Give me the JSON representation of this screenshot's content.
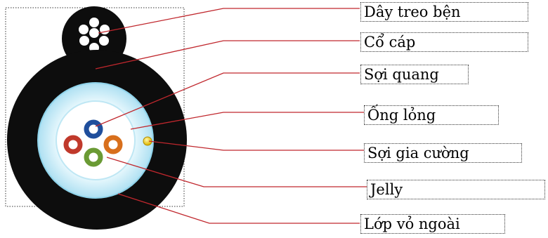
{
  "labels": {
    "day_treo_ben": "Dây treo bện",
    "co_cap": "Cổ cáp",
    "soi_quang": "Sợi quang",
    "ong_long": "Ống lỏng",
    "soi_gia_cuong": "Sợi gia cường",
    "jelly": "Jelly",
    "lop_vo_ngoai": "Lớp vỏ ngoài"
  },
  "colors": {
    "leader_line": "#c0272d",
    "cable_jacket": "#0d0d0d",
    "loose_tube": "#d6f1fa",
    "jelly_fill": "#ffffff",
    "fiber_blue": "#1f4e9c",
    "fiber_red": "#c0392b",
    "fiber_orange": "#d86f1c",
    "fiber_green": "#6a9a34",
    "strength_member": "#f5d10f"
  }
}
